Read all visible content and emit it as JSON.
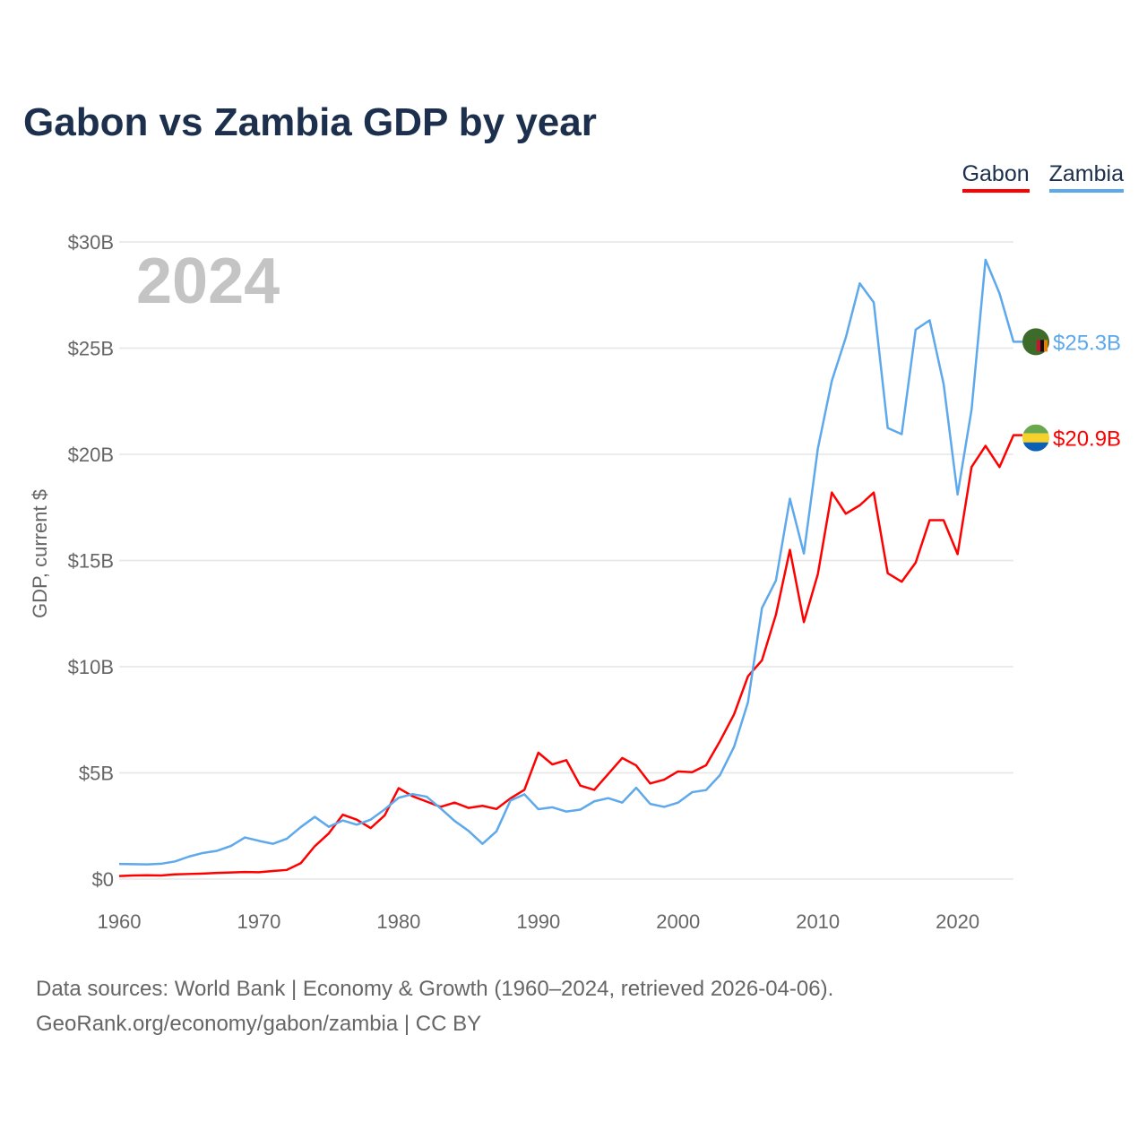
{
  "title": "Gabon vs Zambia GDP by year",
  "footer": {
    "line1": "Data sources: World Bank | Economy & Growth (1960–2024, retrieved 2026-04-06).",
    "line2": "GeoRank.org/economy/gabon/zambia | CC BY"
  },
  "chart_data": {
    "type": "line",
    "title": "Gabon vs Zambia GDP by year",
    "ylabel": "GDP, current $",
    "xlabel": "",
    "year_label": "2024",
    "xlim": [
      1960,
      2024
    ],
    "ylim": [
      0,
      30
    ],
    "y_ticks": [
      {
        "v": 0,
        "label": "$0"
      },
      {
        "v": 5,
        "label": "$5B"
      },
      {
        "v": 10,
        "label": "$10B"
      },
      {
        "v": 15,
        "label": "$15B"
      },
      {
        "v": 20,
        "label": "$20B"
      },
      {
        "v": 25,
        "label": "$25B"
      },
      {
        "v": 30,
        "label": "$30B"
      }
    ],
    "x_ticks": [
      1960,
      1970,
      1980,
      1990,
      2000,
      2010,
      2020
    ],
    "grid": true,
    "legend_placement": "top-right",
    "series": [
      {
        "name": "Gabon",
        "color": "#ff0000",
        "end_label": "$20.9B",
        "values": [
          0.14,
          0.17,
          0.18,
          0.17,
          0.22,
          0.24,
          0.26,
          0.29,
          0.31,
          0.33,
          0.32,
          0.38,
          0.43,
          0.75,
          1.55,
          2.15,
          3.03,
          2.8,
          2.4,
          3.0,
          4.28,
          3.9,
          3.65,
          3.4,
          3.6,
          3.35,
          3.45,
          3.3,
          3.8,
          4.2,
          5.95,
          5.4,
          5.6,
          4.4,
          4.2,
          4.95,
          5.7,
          5.35,
          4.5,
          4.68,
          5.07,
          5.03,
          5.36,
          6.5,
          7.75,
          9.55,
          10.3,
          12.45,
          15.5,
          12.1,
          14.36,
          18.2,
          17.2,
          17.6,
          18.2,
          14.4,
          14.0,
          14.9,
          16.9,
          16.9,
          15.3,
          19.4,
          20.4,
          19.4,
          20.9
        ]
      },
      {
        "name": "Zambia",
        "color": "#5ea8ec",
        "end_label": "$25.3B",
        "values": [
          0.71,
          0.7,
          0.69,
          0.72,
          0.83,
          1.06,
          1.23,
          1.33,
          1.56,
          1.96,
          1.8,
          1.66,
          1.9,
          2.45,
          2.93,
          2.46,
          2.76,
          2.56,
          2.8,
          3.28,
          3.83,
          4.0,
          3.88,
          3.33,
          2.74,
          2.27,
          1.66,
          2.25,
          3.7,
          3.99,
          3.29,
          3.38,
          3.18,
          3.27,
          3.66,
          3.81,
          3.6,
          4.3,
          3.54,
          3.4,
          3.6,
          4.09,
          4.19,
          4.9,
          6.22,
          8.33,
          12.76,
          14.06,
          17.91,
          15.33,
          20.27,
          23.46,
          25.5,
          28.05,
          27.15,
          21.24,
          20.95,
          25.87,
          26.31,
          23.31,
          18.11,
          22.1,
          29.16,
          27.58,
          25.3
        ]
      }
    ]
  }
}
